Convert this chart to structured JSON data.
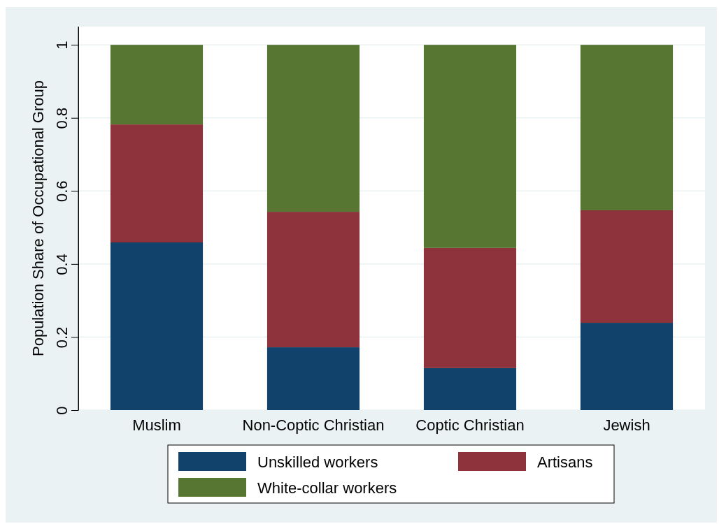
{
  "chart_data": {
    "type": "bar",
    "stacked": true,
    "ylabel": "Population Share of Occupational Group",
    "categories": [
      "Muslim",
      "Non-Coptic Christian",
      "Coptic Christian",
      "Jewish"
    ],
    "series": [
      {
        "name": "Unskilled workers",
        "color": "#11426b",
        "values": [
          0.459,
          0.172,
          0.115,
          0.239
        ]
      },
      {
        "name": "Artisans",
        "color": "#8e333c",
        "values": [
          0.323,
          0.371,
          0.329,
          0.308
        ]
      },
      {
        "name": "White-collar workers",
        "color": "#567632",
        "values": [
          0.218,
          0.457,
          0.556,
          0.453
        ]
      }
    ],
    "ylim": [
      0,
      1.05
    ],
    "yticks": [
      0,
      0.2,
      0.4,
      0.6,
      0.8,
      1
    ],
    "grid": "y",
    "legend": "bottom"
  }
}
